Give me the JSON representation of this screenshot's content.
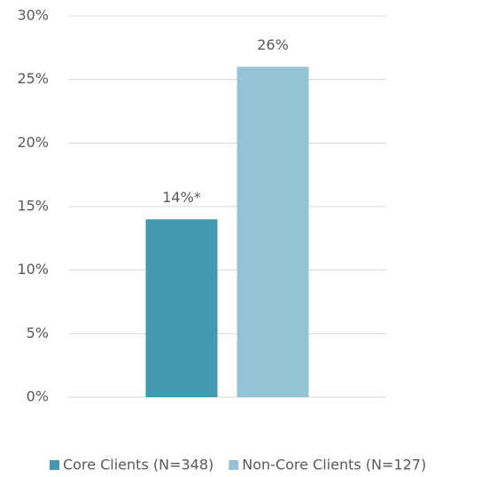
{
  "chart_data": {
    "type": "bar",
    "categories": [
      null
    ],
    "series": [
      {
        "name": "Core Clients (N=348)",
        "color": "#4299b0",
        "values": [
          14
        ],
        "value_labels": [
          "14%*"
        ]
      },
      {
        "name": "Non-Core Clients (N=127)",
        "color": "#93c3d5",
        "values": [
          26
        ],
        "value_labels": [
          "26%"
        ]
      }
    ],
    "ylim": [
      0,
      30
    ],
    "yticks": [
      {
        "value": 0,
        "label": "0%"
      },
      {
        "value": 5,
        "label": "5%"
      },
      {
        "value": 10,
        "label": "10%"
      },
      {
        "value": 15,
        "label": "15%"
      },
      {
        "value": 20,
        "label": "20%"
      },
      {
        "value": 25,
        "label": "25%"
      },
      {
        "value": 30,
        "label": "30%"
      }
    ],
    "grid": true,
    "legend": "bottom"
  }
}
